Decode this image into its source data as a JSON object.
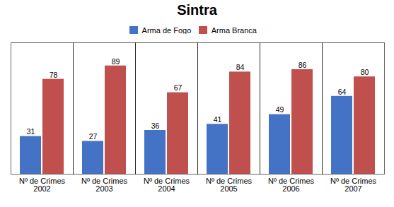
{
  "chart_data": {
    "type": "bar",
    "title": "Sintra",
    "xlabel": "Nº de Crimes",
    "categories": [
      "2002",
      "2003",
      "2004",
      "2005",
      "2006",
      "2007"
    ],
    "series": [
      {
        "name": "Arma de Fogo",
        "color": "#4472C4",
        "values": [
          31,
          27,
          36,
          41,
          49,
          64
        ]
      },
      {
        "name": "Arma Branca",
        "color": "#C0504D",
        "values": [
          78,
          89,
          67,
          84,
          86,
          80
        ]
      }
    ],
    "ylim": [
      0,
      108
    ],
    "grid": false,
    "legend": "top",
    "data_labels": true,
    "tick_labels": "x"
  }
}
